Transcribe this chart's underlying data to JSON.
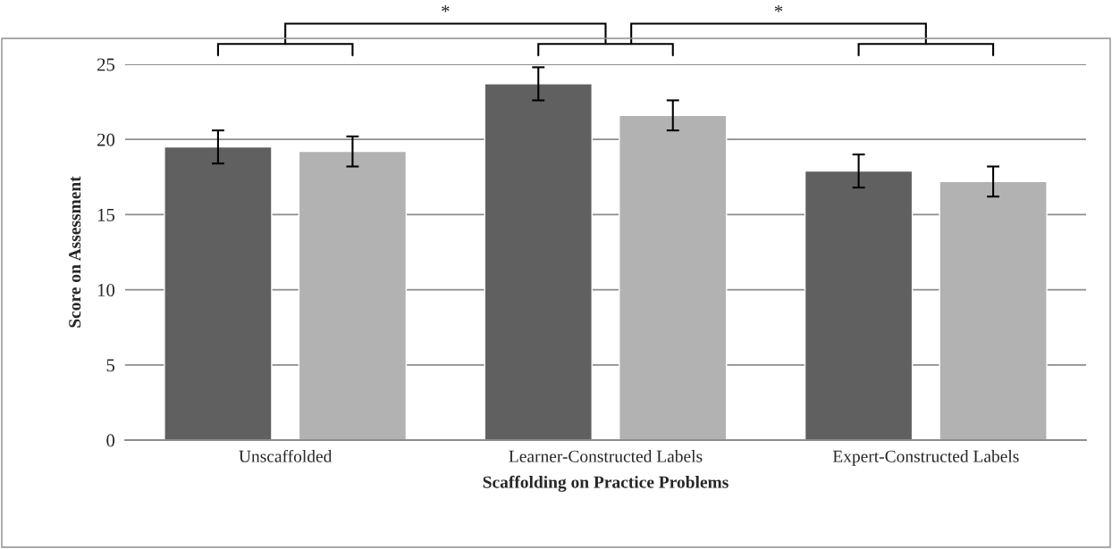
{
  "chart_data": {
    "type": "bar",
    "xlabel": "Scaffolding on Practice Problems",
    "ylabel": "Score on Assessment",
    "categories": [
      "Unscaffolded",
      "Learner-Constructed Labels",
      "Expert-Constructed Labels"
    ],
    "series": [
      {
        "color": "#606060",
        "values": [
          19.5,
          23.7,
          17.9
        ],
        "errors": [
          1.1,
          1.1,
          1.1
        ]
      },
      {
        "color": "#b2b2b2",
        "values": [
          19.2,
          21.6,
          17.2
        ],
        "errors": [
          1.0,
          1.0,
          1.0
        ]
      }
    ],
    "ylim": [
      0,
      25
    ],
    "yticks": [
      0,
      5,
      10,
      15,
      20,
      25
    ],
    "grid": "y",
    "annotations": [
      "*",
      "*"
    ]
  }
}
